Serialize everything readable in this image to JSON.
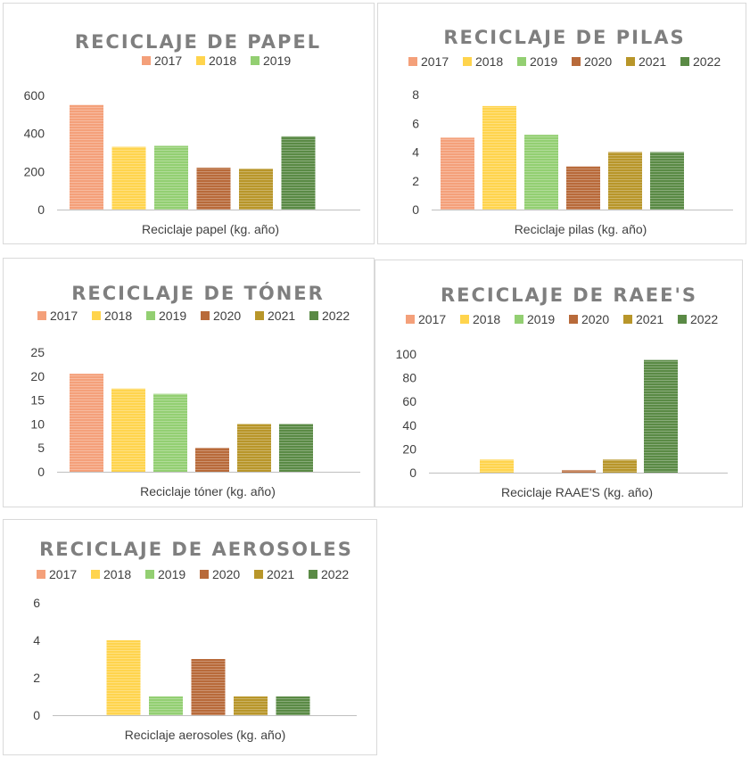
{
  "colors": {
    "2017": "#f4a07a",
    "2018": "#ffd44d",
    "2019": "#93cf72",
    "2020": "#b86a3a",
    "2021": "#b8962a",
    "2022": "#5a8a45"
  },
  "chart_data": [
    {
      "type": "bar",
      "title": "RECICLAJE DE PAPEL",
      "xlabel": "Reciclaje papel (kg. año)",
      "ylabel": "",
      "ylim": [
        0,
        600
      ],
      "yticks": [
        0,
        200,
        400,
        600
      ],
      "legend_position": "top",
      "legend": [
        "2017",
        "2018",
        "2019"
      ],
      "series": [
        {
          "name": "2017",
          "values": [
            550
          ]
        },
        {
          "name": "2018",
          "values": [
            330
          ]
        },
        {
          "name": "2019",
          "values": [
            335
          ]
        },
        {
          "name": "",
          "values": [
            220
          ]
        },
        {
          "name": "",
          "values": [
            215
          ]
        },
        {
          "name": "",
          "values": [
            385
          ]
        }
      ]
    },
    {
      "type": "bar",
      "title": "RECICLAJE DE PILAS",
      "xlabel": "Reciclaje pilas (kg. año)",
      "ylabel": "",
      "ylim": [
        0,
        8
      ],
      "yticks": [
        0,
        2,
        4,
        6,
        8
      ],
      "legend_position": "top",
      "legend": [
        "2017",
        "2018",
        "2019",
        "2020",
        "2021",
        "2022"
      ],
      "series": [
        {
          "name": "2017",
          "values": [
            5
          ]
        },
        {
          "name": "2018",
          "values": [
            7.2
          ]
        },
        {
          "name": "2019",
          "values": [
            5.2
          ]
        },
        {
          "name": "2020",
          "values": [
            3
          ]
        },
        {
          "name": "2021",
          "values": [
            4
          ]
        },
        {
          "name": "2022",
          "values": [
            4
          ]
        }
      ]
    },
    {
      "type": "bar",
      "title": "RECICLAJE DE TÓNER",
      "xlabel": "Reciclaje tóner (kg. año)",
      "ylabel": "",
      "ylim": [
        0,
        25
      ],
      "yticks": [
        0,
        5,
        10,
        15,
        20,
        25
      ],
      "legend_position": "top",
      "legend": [
        "2017",
        "2018",
        "2019",
        "2020",
        "2021",
        "2022"
      ],
      "series": [
        {
          "name": "2017",
          "values": [
            20.5
          ]
        },
        {
          "name": "2018",
          "values": [
            17.4
          ]
        },
        {
          "name": "2019",
          "values": [
            16.3
          ]
        },
        {
          "name": "2020",
          "values": [
            5
          ]
        },
        {
          "name": "2021",
          "values": [
            10
          ]
        },
        {
          "name": "2022",
          "values": [
            10
          ]
        }
      ]
    },
    {
      "type": "bar",
      "title": "RECICLAJE DE RAEE'S",
      "xlabel": "Reciclaje RAAE'S (kg. año)",
      "ylabel": "",
      "ylim": [
        0,
        100
      ],
      "yticks": [
        0,
        20,
        40,
        60,
        80,
        100
      ],
      "legend_position": "top",
      "legend": [
        "2017",
        "2018",
        "2019",
        "2020",
        "2021",
        "2022"
      ],
      "series": [
        {
          "name": "2017",
          "values": [
            0
          ]
        },
        {
          "name": "2018",
          "values": [
            11
          ]
        },
        {
          "name": "2019",
          "values": [
            0
          ]
        },
        {
          "name": "2020",
          "values": [
            2
          ]
        },
        {
          "name": "2021",
          "values": [
            11
          ]
        },
        {
          "name": "2022",
          "values": [
            95
          ]
        }
      ]
    },
    {
      "type": "bar",
      "title": "RECICLAJE DE AEROSOLES",
      "xlabel": "Reciclaje aerosoles (kg. año)",
      "ylabel": "",
      "ylim": [
        0,
        6
      ],
      "yticks": [
        0,
        2,
        4,
        6
      ],
      "legend_position": "top",
      "legend": [
        "2017",
        "2018",
        "2019",
        "2020",
        "2021",
        "2022"
      ],
      "series": [
        {
          "name": "2017",
          "values": [
            0
          ]
        },
        {
          "name": "2018",
          "values": [
            4
          ]
        },
        {
          "name": "2019",
          "values": [
            1
          ]
        },
        {
          "name": "2020",
          "values": [
            3
          ]
        },
        {
          "name": "2021",
          "values": [
            1
          ]
        },
        {
          "name": "2022",
          "values": [
            1
          ]
        }
      ]
    }
  ]
}
